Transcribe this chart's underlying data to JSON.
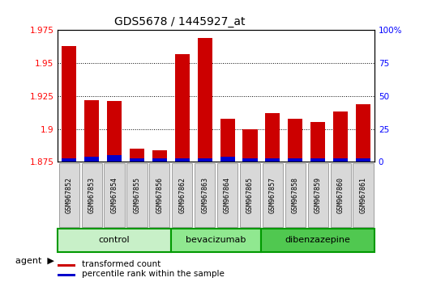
{
  "title": "GDS5678 / 1445927_at",
  "samples": [
    "GSM967852",
    "GSM967853",
    "GSM967854",
    "GSM967855",
    "GSM967856",
    "GSM967862",
    "GSM967863",
    "GSM967864",
    "GSM967865",
    "GSM967857",
    "GSM967858",
    "GSM967859",
    "GSM967860",
    "GSM967861"
  ],
  "transformed_count": [
    1.963,
    1.922,
    1.921,
    1.885,
    1.884,
    1.957,
    1.969,
    1.908,
    1.9,
    1.912,
    1.908,
    1.905,
    1.913,
    1.919
  ],
  "percentile_rank": [
    3,
    4,
    5,
    3,
    3,
    3,
    3,
    4,
    3,
    3,
    3,
    3,
    3,
    3
  ],
  "groups": [
    {
      "name": "control",
      "start": 0,
      "end": 5,
      "color": "#c8f0c8"
    },
    {
      "name": "bevacizumab",
      "start": 5,
      "end": 9,
      "color": "#90e890"
    },
    {
      "name": "dibenzazepine",
      "start": 9,
      "end": 14,
      "color": "#50c850"
    }
  ],
  "ylim_left": [
    1.875,
    1.975
  ],
  "ylim_right": [
    0,
    100
  ],
  "yticks_left": [
    1.875,
    1.9,
    1.925,
    1.95,
    1.975
  ],
  "yticks_right": [
    0,
    25,
    50,
    75,
    100
  ],
  "bar_color_red": "#cc0000",
  "bar_color_blue": "#0000cc",
  "bar_width": 0.65,
  "legend_red": "transformed count",
  "legend_blue": "percentile rank within the sample",
  "agent_label": "agent",
  "background_color": "#ffffff",
  "plot_bg_color": "#ffffff",
  "sample_box_color": "#d8d8d8",
  "group_border_color": "#009900"
}
